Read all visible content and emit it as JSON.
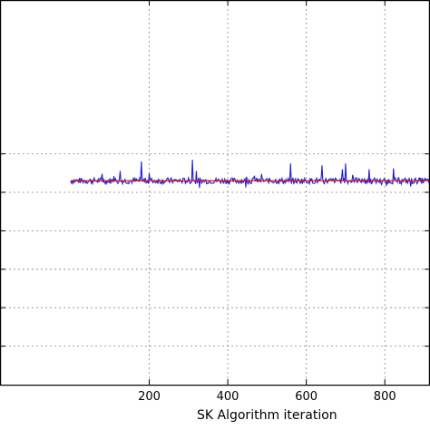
{
  "chart_data": {
    "type": "line",
    "xlabel": "SK Algorithm iteration",
    "ylabel": "",
    "xlim": [
      -180,
      915
    ],
    "ylim": [
      0,
      1
    ],
    "x_ticks": [
      200,
      400,
      600,
      800
    ],
    "x_tick_labels": [
      "200",
      "400",
      "600",
      "800"
    ],
    "y_gridlines": [
      0.1,
      0.2,
      0.3,
      0.4,
      0.5,
      0.6
    ],
    "grid": true,
    "colors": {
      "series": "#1f1fd6",
      "reference": "#e01010"
    },
    "series": [
      {
        "role": "noisy-series",
        "x_range": [
          0,
          915
        ],
        "baseline": 0.53,
        "noise_amplitude": 0.008,
        "spike_x": [
          125,
          180,
          310,
          405,
          455,
          560,
          640,
          700,
          760
        ],
        "spike_values": [
          0.575,
          0.58,
          0.585,
          0.58,
          0.575,
          0.575,
          0.57,
          0.575,
          0.56
        ]
      },
      {
        "role": "reference",
        "x_range": [
          0,
          915
        ],
        "value": 0.53
      }
    ]
  }
}
